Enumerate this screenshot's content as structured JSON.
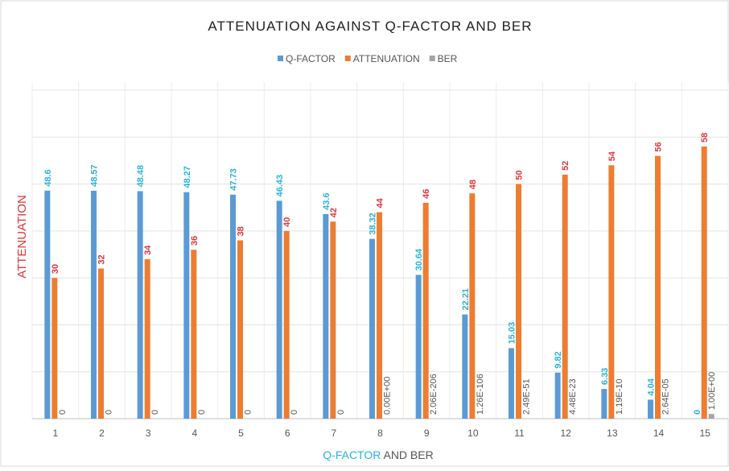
{
  "chart_data": {
    "type": "bar",
    "title": "ATTENUATION AGAINST Q-FACTOR AND BER",
    "ylabel": "ATTENUATION",
    "xlabel_parts": [
      "Q-FACTOR",
      "AND BER"
    ],
    "categories": [
      "1",
      "2",
      "3",
      "4",
      "5",
      "6",
      "7",
      "8",
      "9",
      "10",
      "11",
      "12",
      "13",
      "14",
      "15"
    ],
    "series": [
      {
        "name": "Q-FACTOR",
        "color": "#5b9bd5",
        "label_color": "#29b3dd",
        "values": [
          48.6,
          48.57,
          48.48,
          48.27,
          47.73,
          46.43,
          43.6,
          38.32,
          30.64,
          22.21,
          15.03,
          9.82,
          6.33,
          4.04,
          0
        ]
      },
      {
        "name": "ATTENUATION",
        "color": "#ed7d31",
        "label_color": "#e0353b",
        "values": [
          30,
          32,
          34,
          36,
          38,
          40,
          42,
          44,
          46,
          48,
          50,
          52,
          54,
          56,
          58
        ]
      },
      {
        "name": "BER",
        "color": "#a5a5a5",
        "label_color": "#555555",
        "values": [
          0,
          0,
          0,
          0,
          0,
          0,
          0,
          0,
          2.06e-206,
          1.26e-106,
          2.49e-51,
          4.48e-23,
          1.19e-10,
          2.64e-05,
          1
        ],
        "value_labels": [
          "0",
          "0",
          "0",
          "0",
          "0",
          "0",
          "0",
          "0.00E+00",
          "2.06E-206",
          "1.26E-106",
          "2.49E-51",
          "4.48E-23",
          "1.19E-10",
          "2.64E-05",
          "1.00E+00"
        ]
      }
    ],
    "ylim": [
      0,
      70
    ],
    "yticks": [
      0,
      10,
      20,
      30,
      40,
      50,
      60,
      70
    ],
    "grid": true,
    "legend": "top"
  }
}
